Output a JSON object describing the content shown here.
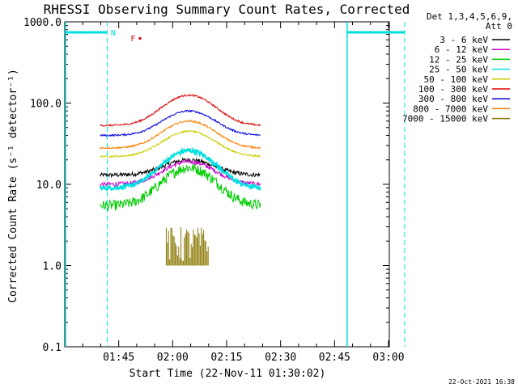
{
  "chart_data": {
    "type": "line",
    "title": "RHESSI Observing Summary Count Rates, Corrected",
    "xlabel": "Start Time (22-Nov-11 01:30:02)",
    "ylabel": "Corrected Count Rate (s⁻¹ detector⁻¹)",
    "yscale": "log",
    "ylim": [
      0.1,
      1000
    ],
    "y_ticks": [
      "0.1",
      "1.0",
      "10.0",
      "100.0",
      "1000.0"
    ],
    "x_range_min": [
      0,
      90
    ],
    "x_ticks": [
      {
        "label": "01:45",
        "min": 15
      },
      {
        "label": "02:00",
        "min": 30
      },
      {
        "label": "02:15",
        "min": 45
      },
      {
        "label": "02:30",
        "min": 60
      },
      {
        "label": "02:45",
        "min": 75
      },
      {
        "label": "03:00",
        "min": 90
      }
    ],
    "legend_title": [
      "Det 1,3,4,5,6,9,",
      "Att 0"
    ],
    "legend_position": "right",
    "series": [
      {
        "name": "3 - 6 keV",
        "color": "#000000",
        "base": 13,
        "peak": 20
      },
      {
        "name": "6 - 12 keV",
        "color": "#cc00cc",
        "base": 10,
        "peak": 19
      },
      {
        "name": "12 - 25 keV",
        "color": "#00cc00",
        "base": 5.5,
        "peak": 16
      },
      {
        "name": "25 - 50 keV",
        "color": "#00e0e0",
        "base": 9,
        "peak": 26
      },
      {
        "name": "50 - 100 keV",
        "color": "#cccc00",
        "base": 22,
        "peak": 45
      },
      {
        "name": "100 - 300 keV",
        "color": "#dd0000",
        "base": 53,
        "peak": 125
      },
      {
        "name": "300 - 800 keV",
        "color": "#0000dd",
        "base": 40,
        "peak": 80
      },
      {
        "name": "800 - 7000 keV",
        "color": "#ff7f00",
        "base": 28,
        "peak": 60
      },
      {
        "name": "7000 - 15000 keV",
        "color": "#887700",
        "base": 1.0,
        "peak": 3
      }
    ],
    "annotations": {
      "night_marker": "N",
      "flare_marker": "F"
    }
  },
  "footer": {
    "date_stamp": "22-Oct-2021 16:38"
  }
}
